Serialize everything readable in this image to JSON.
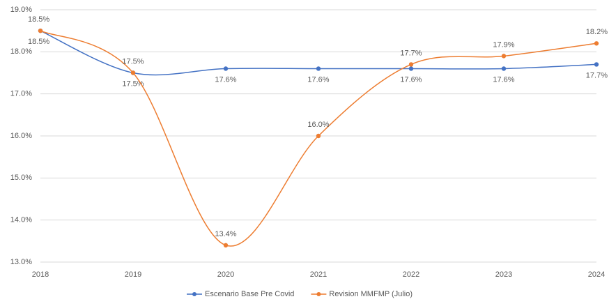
{
  "chart_data": {
    "type": "line",
    "categories": [
      "2018",
      "2019",
      "2020",
      "2021",
      "2022",
      "2023",
      "2024"
    ],
    "series": [
      {
        "name": "Escenario Base Pre Covid",
        "color": "#4472c4",
        "values": [
          18.5,
          17.5,
          17.6,
          17.6,
          17.6,
          17.6,
          17.7
        ],
        "value_labels": [
          "18.5%",
          "17.5%",
          "17.6%",
          "17.6%",
          "17.6%",
          "17.6%",
          "17.7%"
        ]
      },
      {
        "name": "Revision MMFMP (Julio)",
        "color": "#ed7d31",
        "values": [
          18.5,
          17.5,
          13.4,
          16.0,
          17.7,
          17.9,
          18.2
        ],
        "value_labels": [
          "18.5%",
          "17.5%",
          "13.4%",
          "16.0%",
          "17.7%",
          "17.9%",
          "18.2%"
        ]
      }
    ],
    "ylim": [
      13,
      19
    ],
    "yticks": [
      {
        "value": 13,
        "label": "13.0%"
      },
      {
        "value": 14,
        "label": "14.0%"
      },
      {
        "value": 15,
        "label": "15.0%"
      },
      {
        "value": 16,
        "label": "16.0%"
      },
      {
        "value": 17,
        "label": "17.0%"
      },
      {
        "value": 18,
        "label": "18.0%"
      },
      {
        "value": 19,
        "label": "19.0%"
      }
    ],
    "grid": true,
    "legend": "bottom",
    "smooth": true
  }
}
